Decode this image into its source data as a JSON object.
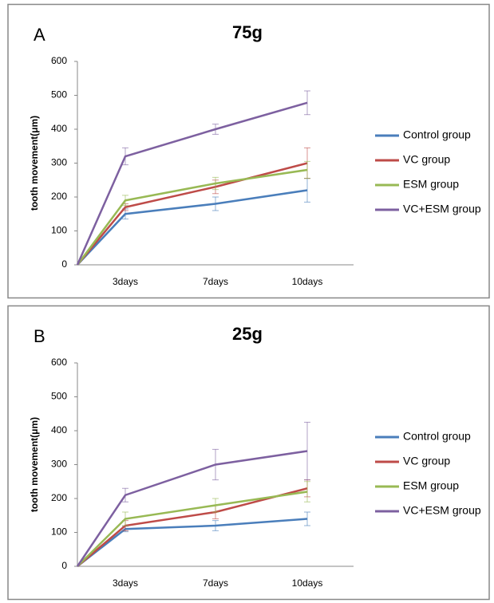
{
  "chart_data": [
    {
      "type": "line",
      "panel": "A",
      "title": "75g",
      "y_label": "tooth movement(μm)",
      "categories": [
        null,
        "3days",
        "7days",
        "10days"
      ],
      "ylim": [
        0,
        600
      ],
      "yticks": [
        0,
        100,
        200,
        300,
        400,
        500,
        600
      ],
      "series": [
        {
          "name": "Control group",
          "color": "#4a7ebb",
          "values": [
            0,
            150,
            180,
            220
          ],
          "errors": [
            null,
            15,
            20,
            35
          ]
        },
        {
          "name": "VC group",
          "color": "#be4b48",
          "values": [
            0,
            170,
            230,
            300
          ],
          "errors": [
            null,
            10,
            20,
            45
          ]
        },
        {
          "name": "ESM group",
          "color": "#98b954",
          "values": [
            0,
            190,
            240,
            280
          ],
          "errors": [
            null,
            15,
            18,
            25
          ]
        },
        {
          "name": "VC+ESM group",
          "color": "#7d60a0",
          "values": [
            0,
            320,
            400,
            478
          ],
          "errors": [
            null,
            25,
            15,
            35
          ]
        }
      ]
    },
    {
      "type": "line",
      "panel": "B",
      "title": "25g",
      "y_label": "tooth movement(μm)",
      "categories": [
        null,
        "3days",
        "7days",
        "10days"
      ],
      "ylim": [
        0,
        600
      ],
      "yticks": [
        0,
        100,
        200,
        300,
        400,
        500,
        600
      ],
      "series": [
        {
          "name": "Control group",
          "color": "#4a7ebb",
          "values": [
            0,
            110,
            120,
            140
          ],
          "errors": [
            null,
            8,
            15,
            20
          ]
        },
        {
          "name": "VC group",
          "color": "#be4b48",
          "values": [
            0,
            120,
            160,
            230
          ],
          "errors": [
            null,
            15,
            20,
            25
          ]
        },
        {
          "name": "ESM group",
          "color": "#98b954",
          "values": [
            0,
            140,
            180,
            220
          ],
          "errors": [
            null,
            20,
            20,
            30
          ]
        },
        {
          "name": "VC+ESM group",
          "color": "#7d60a0",
          "values": [
            0,
            210,
            300,
            340
          ],
          "errors": [
            null,
            20,
            45,
            85
          ]
        }
      ]
    }
  ]
}
